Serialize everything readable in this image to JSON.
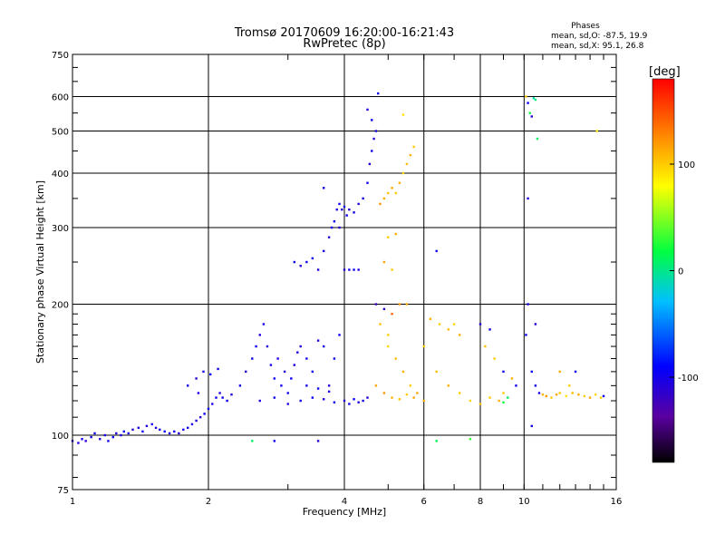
{
  "chart_data": {
    "type": "scatter",
    "title": "Tromsø 20170609 16:20:00-16:21:43",
    "subtitle": "RwPretec (8p)",
    "xlabel": "Frequency [MHz]",
    "ylabel": "Stationary phase Virtual Height [km]",
    "x_scale": "log",
    "y_scale": "log",
    "xlim": [
      1,
      16
    ],
    "ylim": [
      75,
      750
    ],
    "x_ticks": [
      1,
      2,
      4,
      6,
      8,
      10,
      16
    ],
    "y_ticks": [
      75,
      100,
      200,
      300,
      400,
      500,
      600,
      750
    ],
    "grid": true,
    "info": {
      "heading": "Phases",
      "line_o": "mean, sd,O: -87.5, 19.9",
      "line_x": "mean, sd,X:  95.1, 26.8"
    },
    "colorbar": {
      "label": "[deg]",
      "range": [
        -180,
        180
      ],
      "ticks": [
        -100,
        0,
        100
      ],
      "colormap": "rainbow"
    },
    "series": [
      {
        "points": [
          [
            1.0,
            97,
            -110
          ],
          [
            1.03,
            96,
            -105
          ],
          [
            1.05,
            98,
            -100
          ],
          [
            1.07,
            97,
            -115
          ],
          [
            1.1,
            99,
            -100
          ],
          [
            1.12,
            101,
            -95
          ],
          [
            1.15,
            98,
            -110
          ],
          [
            1.18,
            100,
            -105
          ],
          [
            1.2,
            97,
            -100
          ],
          [
            1.23,
            99,
            -95
          ],
          [
            1.25,
            101,
            -110
          ],
          [
            1.28,
            100,
            -100
          ],
          [
            1.3,
            102,
            -90
          ],
          [
            1.33,
            101,
            -105
          ],
          [
            1.36,
            103,
            -110
          ],
          [
            1.4,
            104,
            -100
          ],
          [
            1.43,
            102,
            -95
          ],
          [
            1.46,
            105,
            -105
          ],
          [
            1.5,
            106,
            -100
          ],
          [
            1.53,
            104,
            -110
          ],
          [
            1.56,
            103,
            -100
          ],
          [
            1.6,
            102,
            -95
          ],
          [
            1.64,
            101,
            -105
          ],
          [
            1.68,
            102,
            -100
          ],
          [
            1.72,
            101,
            -110
          ],
          [
            1.76,
            103,
            -100
          ],
          [
            1.8,
            104,
            -95
          ],
          [
            1.84,
            106,
            -105
          ],
          [
            1.88,
            108,
            -100
          ],
          [
            1.92,
            110,
            -110
          ],
          [
            1.96,
            112,
            -100
          ],
          [
            2.0,
            115,
            -95
          ],
          [
            2.04,
            118,
            -105
          ],
          [
            2.08,
            122,
            -100
          ],
          [
            2.12,
            125,
            -110
          ],
          [
            2.15,
            122,
            -100
          ],
          [
            2.2,
            120,
            -95
          ],
          [
            2.25,
            124,
            -105
          ],
          [
            1.8,
            130,
            -100
          ],
          [
            1.88,
            135,
            -110
          ],
          [
            1.95,
            140,
            -100
          ],
          [
            2.02,
            138,
            -95
          ],
          [
            1.9,
            125,
            -105
          ],
          [
            2.1,
            142,
            -100
          ],
          [
            2.35,
            130,
            -100
          ],
          [
            2.42,
            140,
            -110
          ],
          [
            2.5,
            150,
            -100
          ],
          [
            2.55,
            160,
            -95
          ],
          [
            2.6,
            170,
            -105
          ],
          [
            2.65,
            180,
            -100
          ],
          [
            2.7,
            160,
            -110
          ],
          [
            2.75,
            145,
            -100
          ],
          [
            2.8,
            135,
            -95
          ],
          [
            2.85,
            150,
            -105
          ],
          [
            2.9,
            130,
            -100
          ],
          [
            2.95,
            140,
            -110
          ],
          [
            3.0,
            125,
            -100
          ],
          [
            3.05,
            135,
            -95
          ],
          [
            3.1,
            145,
            -105
          ],
          [
            3.15,
            155,
            -100
          ],
          [
            3.2,
            160,
            -110
          ],
          [
            3.3,
            150,
            -100
          ],
          [
            3.4,
            140,
            -95
          ],
          [
            3.5,
            165,
            -105
          ],
          [
            3.6,
            160,
            -100
          ],
          [
            3.7,
            130,
            -110
          ],
          [
            3.8,
            150,
            -100
          ],
          [
            3.9,
            170,
            -95
          ],
          [
            2.6,
            120,
            -105
          ],
          [
            2.8,
            122,
            -100
          ],
          [
            3.0,
            118,
            -110
          ],
          [
            3.2,
            120,
            -100
          ],
          [
            3.4,
            122,
            -95
          ],
          [
            3.6,
            121,
            -105
          ],
          [
            3.8,
            119,
            -100
          ],
          [
            4.0,
            120,
            -110
          ],
          [
            4.1,
            118,
            -100
          ],
          [
            4.2,
            121,
            -95
          ],
          [
            4.3,
            119,
            -105
          ],
          [
            4.4,
            120,
            -100
          ],
          [
            4.5,
            122,
            -110
          ],
          [
            3.3,
            130,
            -100
          ],
          [
            3.5,
            128,
            -95
          ],
          [
            3.7,
            126,
            -105
          ],
          [
            3.1,
            250,
            -100
          ],
          [
            3.2,
            245,
            -110
          ],
          [
            3.3,
            250,
            -100
          ],
          [
            3.4,
            255,
            -95
          ],
          [
            3.5,
            240,
            -105
          ],
          [
            3.6,
            265,
            -100
          ],
          [
            3.7,
            285,
            -110
          ],
          [
            3.75,
            300,
            -100
          ],
          [
            3.8,
            310,
            -95
          ],
          [
            3.85,
            330,
            -105
          ],
          [
            3.9,
            340,
            -100
          ],
          [
            3.95,
            330,
            -110
          ],
          [
            4.0,
            335,
            -100
          ],
          [
            4.05,
            320,
            -95
          ],
          [
            4.1,
            330,
            -105
          ],
          [
            4.2,
            325,
            -100
          ],
          [
            4.3,
            340,
            -110
          ],
          [
            4.4,
            350,
            -100
          ],
          [
            4.5,
            380,
            -95
          ],
          [
            4.55,
            420,
            -105
          ],
          [
            4.6,
            450,
            -100
          ],
          [
            4.65,
            480,
            -110
          ],
          [
            4.7,
            500,
            -100
          ],
          [
            4.75,
            610,
            -95
          ],
          [
            4.5,
            560,
            -105
          ],
          [
            4.6,
            530,
            -100
          ],
          [
            4.0,
            240,
            -110
          ],
          [
            4.1,
            240,
            -100
          ],
          [
            4.2,
            240,
            -95
          ],
          [
            4.3,
            240,
            -105
          ],
          [
            3.6,
            370,
            -100
          ],
          [
            3.9,
            300,
            -110
          ],
          [
            4.8,
            340,
            120
          ],
          [
            4.9,
            350,
            110
          ],
          [
            5.0,
            360,
            105
          ],
          [
            5.1,
            370,
            115
          ],
          [
            5.2,
            360,
            100
          ],
          [
            5.3,
            380,
            110
          ],
          [
            5.4,
            400,
            95
          ],
          [
            5.5,
            420,
            105
          ],
          [
            5.6,
            440,
            110
          ],
          [
            5.7,
            460,
            100
          ],
          [
            5.4,
            545,
            90
          ],
          [
            5.0,
            285,
            100
          ],
          [
            5.2,
            290,
            110
          ],
          [
            4.9,
            250,
            115
          ],
          [
            5.1,
            240,
            100
          ],
          [
            5.3,
            200,
            120
          ],
          [
            5.5,
            200,
            110
          ],
          [
            5.0,
            160,
            95
          ],
          [
            5.2,
            150,
            105
          ],
          [
            5.4,
            140,
            110
          ],
          [
            5.6,
            130,
            100
          ],
          [
            5.8,
            125,
            115
          ],
          [
            6.0,
            120,
            110
          ],
          [
            4.8,
            180,
            105
          ],
          [
            5.0,
            170,
            100
          ],
          [
            4.7,
            130,
            115
          ],
          [
            4.9,
            125,
            120
          ],
          [
            5.1,
            122,
            110
          ],
          [
            5.3,
            121,
            105
          ],
          [
            5.5,
            124,
            100
          ],
          [
            5.7,
            122,
            115
          ],
          [
            4.7,
            200,
            -120
          ],
          [
            4.9,
            195,
            -115
          ],
          [
            5.1,
            190,
            140
          ],
          [
            6.2,
            185,
            110
          ],
          [
            6.5,
            180,
            100
          ],
          [
            6.8,
            175,
            105
          ],
          [
            7.0,
            180,
            95
          ],
          [
            7.2,
            170,
            110
          ],
          [
            6.0,
            160,
            100
          ],
          [
            6.4,
            140,
            105
          ],
          [
            6.8,
            130,
            110
          ],
          [
            7.2,
            125,
            100
          ],
          [
            7.6,
            120,
            95
          ],
          [
            8.0,
            118,
            105
          ],
          [
            8.4,
            122,
            100
          ],
          [
            8.8,
            120,
            110
          ],
          [
            9.0,
            119,
            20
          ],
          [
            9.2,
            122,
            10
          ],
          [
            8.0,
            180,
            -110
          ],
          [
            8.4,
            175,
            -100
          ],
          [
            8.2,
            160,
            105
          ],
          [
            8.6,
            150,
            100
          ],
          [
            9.0,
            140,
            -100
          ],
          [
            9.4,
            135,
            110
          ],
          [
            9.0,
            125,
            100
          ],
          [
            9.6,
            130,
            -100
          ],
          [
            6.4,
            265,
            -100
          ],
          [
            6.4,
            97,
            15
          ],
          [
            7.6,
            98,
            30
          ],
          [
            10.1,
            600,
            100
          ],
          [
            10.2,
            580,
            -95
          ],
          [
            10.3,
            550,
            20
          ],
          [
            10.5,
            595,
            -10
          ],
          [
            10.6,
            590,
            5
          ],
          [
            10.4,
            540,
            -110
          ],
          [
            10.7,
            480,
            10
          ],
          [
            10.2,
            350,
            -105
          ],
          [
            10.2,
            200,
            -100
          ],
          [
            10.6,
            180,
            -110
          ],
          [
            10.1,
            170,
            -100
          ],
          [
            10.4,
            140,
            -95
          ],
          [
            10.6,
            130,
            -100
          ],
          [
            10.8,
            125,
            -105
          ],
          [
            11.0,
            124,
            110
          ],
          [
            11.2,
            123,
            120
          ],
          [
            11.5,
            122,
            100
          ],
          [
            11.8,
            124,
            115
          ],
          [
            12.0,
            125,
            100
          ],
          [
            12.4,
            123,
            90
          ],
          [
            12.8,
            125,
            105
          ],
          [
            13.2,
            124,
            110
          ],
          [
            13.6,
            123,
            100
          ],
          [
            14.0,
            122,
            115
          ],
          [
            14.4,
            124,
            95
          ],
          [
            14.8,
            122,
            100
          ],
          [
            15.0,
            123,
            -100
          ],
          [
            12.0,
            140,
            110
          ],
          [
            12.6,
            130,
            100
          ],
          [
            13.0,
            140,
            -100
          ],
          [
            14.5,
            500,
            90
          ],
          [
            10.4,
            105,
            -100
          ],
          [
            2.5,
            97,
            10
          ],
          [
            2.8,
            97,
            -100
          ],
          [
            3.5,
            97,
            -110
          ]
        ]
      }
    ]
  }
}
